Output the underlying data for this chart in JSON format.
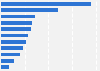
{
  "values": [
    38000,
    24000,
    14500,
    13000,
    12500,
    11500,
    10500,
    9500,
    8000,
    5500,
    3500
  ],
  "bar_color": "#2e75d4",
  "background_color": "#f2f2f2",
  "grid_color": "#ffffff",
  "xlim": [
    0,
    41000
  ],
  "n_bars": 11
}
